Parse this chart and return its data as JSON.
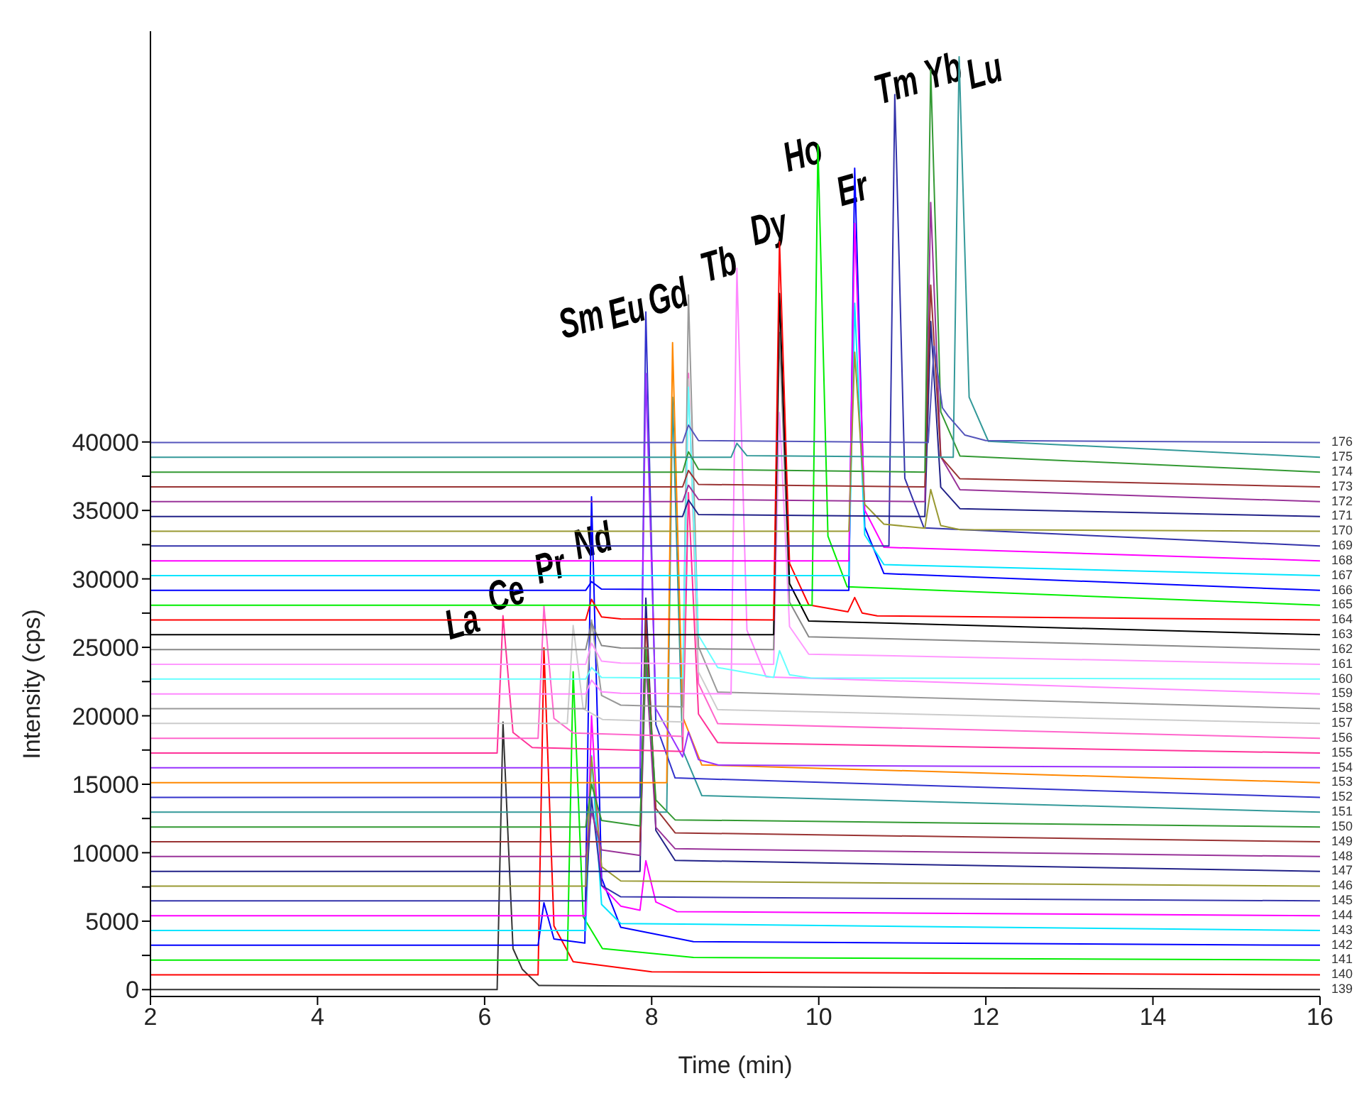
{
  "chart_data": {
    "type": "line",
    "xlabel": "Time (min)",
    "ylabel": "Intensity (cps)",
    "xlim": [
      2,
      16
    ],
    "xticks": [
      2,
      4,
      6,
      8,
      10,
      12,
      14,
      16
    ],
    "ylim": [
      -500,
      70000
    ],
    "yticks": [
      0,
      {
        "value": 2500,
        "label": null
      },
      5000,
      {
        "value": 7500,
        "label": null
      },
      10000,
      {
        "value": 12500,
        "label": null
      },
      15000,
      {
        "value": 17500,
        "label": null
      },
      20000,
      {
        "value": 22500,
        "label": null
      },
      25000,
      {
        "value": 27500,
        "label": null
      },
      30000,
      {
        "value": 32500,
        "label": null
      },
      35000,
      {
        "value": 37500,
        "label": null
      },
      40000
    ],
    "marker": "none",
    "line_style": "solid",
    "annotations": [
      "La",
      "Ce",
      "Pr",
      "Nd",
      "Sm",
      "Eu",
      "Gd",
      "Tb",
      "Dy",
      "Ho",
      "Er",
      "Tm",
      "Yb",
      "Lu"
    ],
    "series": [
      {
        "name": "139",
        "color": "#333333",
        "x": [
          2,
          6.15,
          6.22,
          6.34,
          6.45,
          6.65,
          16
        ],
        "values": [
          0,
          0,
          19540,
          3000,
          1500,
          300,
          0
        ]
      },
      {
        "name": "140",
        "color": "#ff0000",
        "x": [
          2,
          6.64,
          6.71,
          6.83,
          7.06,
          8,
          16
        ],
        "values": [
          1080,
          1080,
          24960,
          4660,
          2040,
          1300,
          1080
        ]
      },
      {
        "name": "141",
        "color": "#00ee00",
        "x": [
          2,
          6.99,
          7.06,
          7.18,
          7.41,
          8.5,
          16
        ],
        "values": [
          2160,
          2160,
          23220,
          5320,
          3000,
          2350,
          2160
        ]
      },
      {
        "name": "142",
        "color": "#0000ff",
        "x": [
          2,
          6.64,
          6.71,
          6.83,
          7.2,
          7.28,
          7.4,
          7.63,
          8.5,
          16
        ],
        "values": [
          3240,
          3240,
          6340,
          3700,
          3400,
          36000,
          8150,
          4550,
          3500,
          3240
        ]
      },
      {
        "name": "143",
        "color": "#00e5ff",
        "x": [
          2,
          7.21,
          7.28,
          7.4,
          7.63,
          16
        ],
        "values": [
          4320,
          4320,
          17080,
          6230,
          4830,
          4320
        ]
      },
      {
        "name": "144",
        "color": "#ff00ff",
        "x": [
          2,
          7.21,
          7.28,
          7.4,
          7.63,
          7.86,
          7.93,
          8.05,
          8.3,
          16
        ],
        "values": [
          5400,
          5400,
          20000,
          7590,
          6100,
          5800,
          9410,
          6400,
          5700,
          5400
        ]
      },
      {
        "name": "145",
        "color": "#3333aa",
        "x": [
          2,
          7.21,
          7.28,
          7.4,
          7.63,
          16
        ],
        "values": [
          6480,
          6480,
          14000,
          7610,
          6780,
          6480
        ]
      },
      {
        "name": "146",
        "color": "#999933",
        "x": [
          2,
          7.21,
          7.28,
          7.4,
          7.63,
          16
        ],
        "values": [
          7560,
          7560,
          17000,
          8980,
          7940,
          7560
        ]
      },
      {
        "name": "147",
        "color": "#222288",
        "x": [
          2,
          7.86,
          7.93,
          8.05,
          8.28,
          16
        ],
        "values": [
          8640,
          8640,
          28600,
          11630,
          9440,
          8640
        ]
      },
      {
        "name": "148",
        "color": "#993399",
        "x": [
          2,
          7.21,
          7.28,
          7.4,
          7.86,
          7.93,
          8.05,
          8.28,
          16
        ],
        "values": [
          9720,
          9720,
          13000,
          10200,
          9800,
          24000,
          11860,
          10290,
          9720
        ]
      },
      {
        "name": "149",
        "color": "#993333",
        "x": [
          2,
          7.86,
          7.93,
          8.05,
          8.28,
          16
        ],
        "values": [
          10800,
          10800,
          27000,
          13230,
          11450,
          10800
        ]
      },
      {
        "name": "150",
        "color": "#339933",
        "x": [
          2,
          7.21,
          7.28,
          7.4,
          7.86,
          7.93,
          8.05,
          8.28,
          16
        ],
        "values": [
          11880,
          11880,
          15000,
          12350,
          11950,
          25000,
          13850,
          12400,
          11880
        ]
      },
      {
        "name": "151",
        "color": "#339999",
        "x": [
          2,
          8.18,
          8.25,
          8.37,
          8.6,
          16
        ],
        "values": [
          12960,
          12960,
          43270,
          17510,
          14170,
          12960
        ]
      },
      {
        "name": "152",
        "color": "#3333cc",
        "x": [
          2,
          7.86,
          7.93,
          8.05,
          8.28,
          16
        ],
        "values": [
          14040,
          14040,
          49500,
          19360,
          15460,
          14040
        ]
      },
      {
        "name": "153",
        "color": "#ff8800",
        "x": [
          2,
          8.18,
          8.25,
          8.37,
          8.6,
          16
        ],
        "values": [
          15120,
          15120,
          47260,
          19940,
          16410,
          15120
        ]
      },
      {
        "name": "154",
        "color": "#9933ff",
        "x": [
          2,
          7.86,
          7.93,
          8.05,
          8.37,
          8.44,
          8.56,
          8.8,
          16
        ],
        "values": [
          16200,
          16200,
          45000,
          20520,
          17000,
          18820,
          16800,
          16400,
          16200
        ]
      },
      {
        "name": "155",
        "color": "#ff3399",
        "x": [
          2,
          6.15,
          6.22,
          6.34,
          6.57,
          8.37,
          8.44,
          8.56,
          8.79,
          16
        ],
        "values": [
          17280,
          17280,
          27310,
          18780,
          17680,
          17400,
          36300,
          20130,
          18040,
          17280
        ]
      },
      {
        "name": "156",
        "color": "#ff66cc",
        "x": [
          2,
          6.64,
          6.71,
          6.83,
          7.06,
          8.37,
          8.44,
          8.56,
          8.79,
          16
        ],
        "values": [
          18360,
          18360,
          28030,
          19810,
          18750,
          18500,
          45010,
          22360,
          19430,
          18360
        ]
      },
      {
        "name": "157",
        "color": "#cccccc",
        "x": [
          2,
          6.99,
          7.06,
          7.18,
          7.41,
          8.37,
          8.44,
          8.56,
          8.79,
          16
        ],
        "values": [
          19440,
          19440,
          26600,
          20510,
          19730,
          19550,
          44600,
          23210,
          20450,
          19440
        ]
      },
      {
        "name": "158",
        "color": "#999999",
        "x": [
          2,
          7.21,
          7.28,
          7.4,
          7.63,
          8.37,
          8.44,
          8.56,
          8.79,
          16
        ],
        "values": [
          20520,
          20520,
          27000,
          21490,
          20780,
          20650,
          50740,
          25050,
          21730,
          20520
        ]
      },
      {
        "name": "159",
        "color": "#ff88ff",
        "x": [
          2,
          7.21,
          7.28,
          7.4,
          7.63,
          8.95,
          9.02,
          9.14,
          9.37,
          16
        ],
        "values": [
          21600,
          21600,
          22600,
          21750,
          21650,
          21600,
          52680,
          26260,
          22840,
          21600
        ]
      },
      {
        "name": "160",
        "color": "#66ffff",
        "x": [
          2,
          7.21,
          7.28,
          7.4,
          8.37,
          8.44,
          8.56,
          8.79,
          9.46,
          9.53,
          9.65,
          9.9,
          16
        ],
        "values": [
          22680,
          22680,
          23530,
          22800,
          22750,
          44000,
          25880,
          23530,
          22800,
          24760,
          23000,
          22760,
          22680
        ]
      },
      {
        "name": "161",
        "color": "#ff99ff",
        "x": [
          2,
          7.21,
          7.28,
          7.4,
          7.63,
          9.46,
          9.53,
          9.65,
          9.88,
          16
        ],
        "values": [
          23760,
          23760,
          25300,
          23990,
          23850,
          23760,
          42150,
          26520,
          24500,
          23760
        ]
      },
      {
        "name": "162",
        "color": "#888888",
        "x": [
          2,
          7.21,
          7.28,
          7.4,
          7.63,
          9.46,
          9.53,
          9.65,
          9.88,
          16
        ],
        "values": [
          24840,
          24840,
          26800,
          25130,
          24950,
          24840,
          48000,
          28310,
          25770,
          24840
        ]
      },
      {
        "name": "163",
        "color": "#000000",
        "x": [
          2,
          9.46,
          9.53,
          9.65,
          9.88,
          16
        ],
        "values": [
          25920,
          25920,
          50840,
          29660,
          26920,
          25920
        ]
      },
      {
        "name": "164",
        "color": "#ff0000",
        "x": [
          2,
          7.21,
          7.28,
          7.4,
          7.63,
          9.46,
          9.53,
          9.65,
          9.88,
          10.35,
          10.43,
          10.52,
          10.7,
          16
        ],
        "values": [
          27000,
          27000,
          28500,
          27220,
          27080,
          27000,
          54630,
          31140,
          28100,
          27600,
          28640,
          27500,
          27300,
          27000
        ]
      },
      {
        "name": "165",
        "color": "#00ee00",
        "x": [
          2,
          9.92,
          9.99,
          10.11,
          10.34,
          16
        ],
        "values": [
          28080,
          28080,
          61690,
          33120,
          29420,
          28080
        ]
      },
      {
        "name": "166",
        "color": "#0000ff",
        "x": [
          2,
          7.21,
          7.28,
          7.4,
          10.36,
          10.43,
          10.55,
          10.78,
          16
        ],
        "values": [
          29160,
          29160,
          29800,
          29250,
          29160,
          60000,
          33790,
          30390,
          29160
        ]
      },
      {
        "name": "167",
        "color": "#00e5ff",
        "x": [
          2,
          10.36,
          10.43,
          10.55,
          10.78,
          16
        ],
        "values": [
          30240,
          30240,
          50130,
          33220,
          31040,
          30240
        ]
      },
      {
        "name": "168",
        "color": "#ff00ff",
        "x": [
          2,
          10.36,
          10.43,
          10.55,
          10.78,
          16
        ],
        "values": [
          31320,
          31320,
          55960,
          35020,
          32310,
          31320
        ]
      },
      {
        "name": "169",
        "color": "#3333aa",
        "x": [
          2,
          10.84,
          10.91,
          11.03,
          11.26,
          16
        ],
        "values": [
          32400,
          32400,
          65370,
          37350,
          33720,
          32400
        ]
      },
      {
        "name": "170",
        "color": "#999933",
        "x": [
          2,
          10.36,
          10.43,
          10.55,
          10.78,
          11.27,
          11.34,
          11.46,
          11.69,
          16
        ],
        "values": [
          33480,
          33480,
          46550,
          35440,
          34000,
          33700,
          36520,
          33900,
          33600,
          33480
        ]
      },
      {
        "name": "171",
        "color": "#222288",
        "x": [
          2,
          8.37,
          8.44,
          8.56,
          11.27,
          11.34,
          11.46,
          11.69,
          16
        ],
        "values": [
          34560,
          34560,
          35760,
          34700,
          34560,
          48800,
          36700,
          35130,
          34560
        ]
      },
      {
        "name": "172",
        "color": "#993399",
        "x": [
          2,
          8.37,
          8.44,
          8.56,
          11.27,
          11.34,
          11.46,
          11.69,
          16
        ],
        "values": [
          35640,
          35640,
          36840,
          35800,
          35640,
          57490,
          38920,
          36510,
          35640
        ]
      },
      {
        "name": "173",
        "color": "#993333",
        "x": [
          2,
          8.37,
          8.44,
          8.56,
          11.27,
          11.34,
          11.46,
          11.69,
          16
        ],
        "values": [
          36720,
          36720,
          37920,
          36900,
          36720,
          51460,
          38930,
          37310,
          36720
        ]
      },
      {
        "name": "174",
        "color": "#339933",
        "x": [
          2,
          8.37,
          8.44,
          8.56,
          11.27,
          11.34,
          11.46,
          11.69,
          16
        ],
        "values": [
          37800,
          37800,
          39280,
          38000,
          37800,
          67210,
          42210,
          38980,
          37800
        ]
      },
      {
        "name": "175",
        "color": "#339999",
        "x": [
          2,
          8.95,
          9.02,
          9.14,
          11.61,
          11.68,
          11.8,
          12.03,
          16
        ],
        "values": [
          38880,
          38880,
          39900,
          39000,
          38880,
          68130,
          43270,
          40050,
          38880
        ]
      },
      {
        "name": "176",
        "color": "#5555bb",
        "x": [
          2,
          8.37,
          8.44,
          8.56,
          11.31,
          11.38,
          11.48,
          11.55,
          11.75,
          12,
          16
        ],
        "values": [
          39960,
          39960,
          41230,
          40100,
          39960,
          47000,
          42500,
          41900,
          40500,
          40100,
          39960
        ]
      }
    ]
  }
}
